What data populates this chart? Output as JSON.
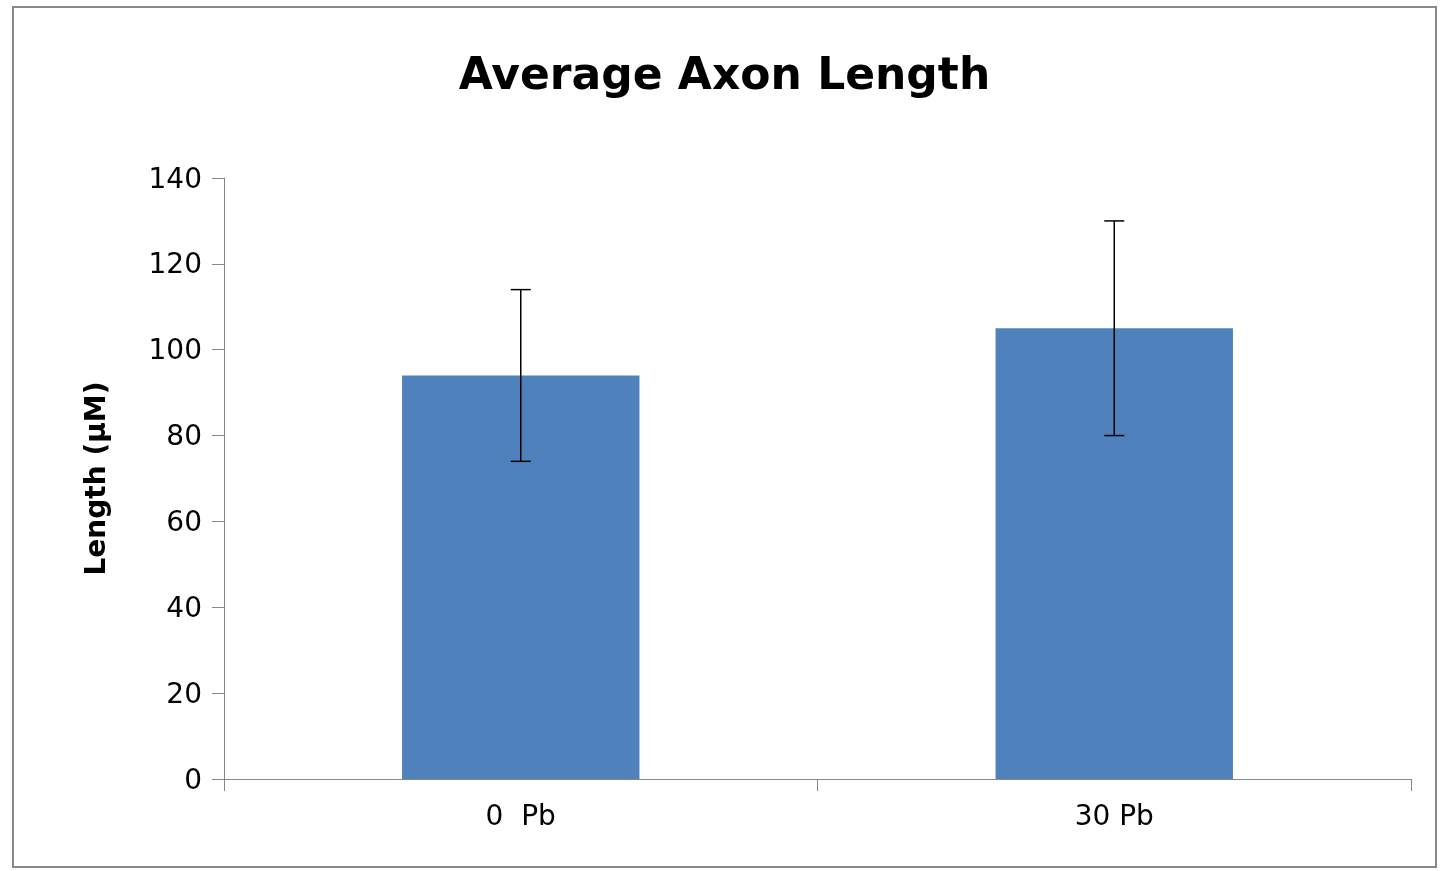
{
  "chart_data": {
    "type": "bar",
    "title": "Average Axon Length",
    "ylabel": "Length (µM)",
    "categories": [
      "0  Pb",
      "30 Pb"
    ],
    "values": [
      94,
      105
    ],
    "errors": [
      20,
      25
    ],
    "color": "#4f81bd",
    "ylim": [
      0,
      140
    ],
    "yticks": [
      0,
      20,
      40,
      60,
      80,
      100,
      120,
      140
    ],
    "grid": false
  }
}
